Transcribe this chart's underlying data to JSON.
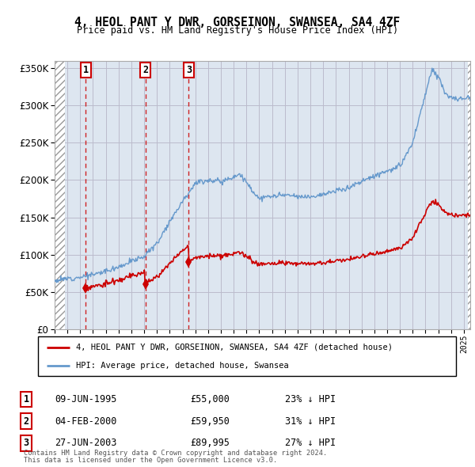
{
  "title1": "4, HEOL PANT Y DWR, GORSEINON, SWANSEA, SA4 4ZF",
  "title2": "Price paid vs. HM Land Registry's House Price Index (HPI)",
  "legend1": "4, HEOL PANT Y DWR, GORSEINON, SWANSEA, SA4 4ZF (detached house)",
  "legend2": "HPI: Average price, detached house, Swansea",
  "footer1": "Contains HM Land Registry data © Crown copyright and database right 2024.",
  "footer2": "This data is licensed under the Open Government Licence v3.0.",
  "sales": [
    {
      "num": 1,
      "date_str": "09-JUN-1995",
      "date_x": 1995.44,
      "price": 55000,
      "label": "23% ↓ HPI"
    },
    {
      "num": 2,
      "date_str": "04-FEB-2000",
      "date_x": 2000.09,
      "price": 59950,
      "label": "31% ↓ HPI"
    },
    {
      "num": 3,
      "date_str": "27-JUN-2003",
      "date_x": 2003.49,
      "price": 89995,
      "label": "27% ↓ HPI"
    }
  ],
  "ylim": [
    0,
    360000
  ],
  "xlim": [
    1993.0,
    2025.5
  ],
  "red_color": "#cc0000",
  "blue_color": "#6699cc",
  "bg_color": "#dde6f0",
  "grid_color": "#bbbbcc"
}
